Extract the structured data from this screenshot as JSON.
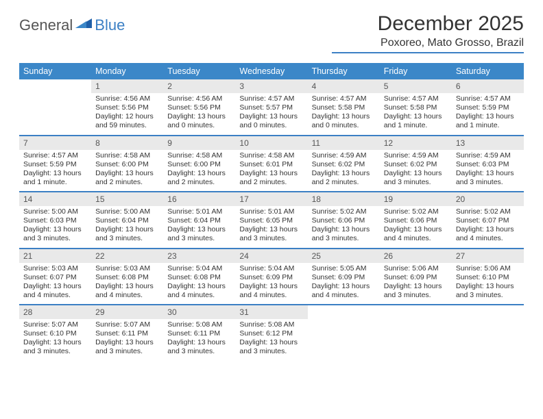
{
  "brand": {
    "part1": "General",
    "part2": "Blue"
  },
  "title": "December 2025",
  "subtitle": "Poxoreo, Mato Grosso, Brazil",
  "colors": {
    "accent": "#3b87c8",
    "accent_line": "#3b7fc4",
    "daynum_bg": "#e9e9e9",
    "text": "#333333",
    "bg": "#ffffff"
  },
  "dayHeaders": [
    "Sunday",
    "Monday",
    "Tuesday",
    "Wednesday",
    "Thursday",
    "Friday",
    "Saturday"
  ],
  "weeks": [
    [
      {
        "n": "",
        "sr": "",
        "ss": "",
        "dl": ""
      },
      {
        "n": "1",
        "sr": "Sunrise: 4:56 AM",
        "ss": "Sunset: 5:56 PM",
        "dl": "Daylight: 12 hours and 59 minutes."
      },
      {
        "n": "2",
        "sr": "Sunrise: 4:56 AM",
        "ss": "Sunset: 5:56 PM",
        "dl": "Daylight: 13 hours and 0 minutes."
      },
      {
        "n": "3",
        "sr": "Sunrise: 4:57 AM",
        "ss": "Sunset: 5:57 PM",
        "dl": "Daylight: 13 hours and 0 minutes."
      },
      {
        "n": "4",
        "sr": "Sunrise: 4:57 AM",
        "ss": "Sunset: 5:58 PM",
        "dl": "Daylight: 13 hours and 0 minutes."
      },
      {
        "n": "5",
        "sr": "Sunrise: 4:57 AM",
        "ss": "Sunset: 5:58 PM",
        "dl": "Daylight: 13 hours and 1 minute."
      },
      {
        "n": "6",
        "sr": "Sunrise: 4:57 AM",
        "ss": "Sunset: 5:59 PM",
        "dl": "Daylight: 13 hours and 1 minute."
      }
    ],
    [
      {
        "n": "7",
        "sr": "Sunrise: 4:57 AM",
        "ss": "Sunset: 5:59 PM",
        "dl": "Daylight: 13 hours and 1 minute."
      },
      {
        "n": "8",
        "sr": "Sunrise: 4:58 AM",
        "ss": "Sunset: 6:00 PM",
        "dl": "Daylight: 13 hours and 2 minutes."
      },
      {
        "n": "9",
        "sr": "Sunrise: 4:58 AM",
        "ss": "Sunset: 6:00 PM",
        "dl": "Daylight: 13 hours and 2 minutes."
      },
      {
        "n": "10",
        "sr": "Sunrise: 4:58 AM",
        "ss": "Sunset: 6:01 PM",
        "dl": "Daylight: 13 hours and 2 minutes."
      },
      {
        "n": "11",
        "sr": "Sunrise: 4:59 AM",
        "ss": "Sunset: 6:02 PM",
        "dl": "Daylight: 13 hours and 2 minutes."
      },
      {
        "n": "12",
        "sr": "Sunrise: 4:59 AM",
        "ss": "Sunset: 6:02 PM",
        "dl": "Daylight: 13 hours and 3 minutes."
      },
      {
        "n": "13",
        "sr": "Sunrise: 4:59 AM",
        "ss": "Sunset: 6:03 PM",
        "dl": "Daylight: 13 hours and 3 minutes."
      }
    ],
    [
      {
        "n": "14",
        "sr": "Sunrise: 5:00 AM",
        "ss": "Sunset: 6:03 PM",
        "dl": "Daylight: 13 hours and 3 minutes."
      },
      {
        "n": "15",
        "sr": "Sunrise: 5:00 AM",
        "ss": "Sunset: 6:04 PM",
        "dl": "Daylight: 13 hours and 3 minutes."
      },
      {
        "n": "16",
        "sr": "Sunrise: 5:01 AM",
        "ss": "Sunset: 6:04 PM",
        "dl": "Daylight: 13 hours and 3 minutes."
      },
      {
        "n": "17",
        "sr": "Sunrise: 5:01 AM",
        "ss": "Sunset: 6:05 PM",
        "dl": "Daylight: 13 hours and 3 minutes."
      },
      {
        "n": "18",
        "sr": "Sunrise: 5:02 AM",
        "ss": "Sunset: 6:06 PM",
        "dl": "Daylight: 13 hours and 3 minutes."
      },
      {
        "n": "19",
        "sr": "Sunrise: 5:02 AM",
        "ss": "Sunset: 6:06 PM",
        "dl": "Daylight: 13 hours and 4 minutes."
      },
      {
        "n": "20",
        "sr": "Sunrise: 5:02 AM",
        "ss": "Sunset: 6:07 PM",
        "dl": "Daylight: 13 hours and 4 minutes."
      }
    ],
    [
      {
        "n": "21",
        "sr": "Sunrise: 5:03 AM",
        "ss": "Sunset: 6:07 PM",
        "dl": "Daylight: 13 hours and 4 minutes."
      },
      {
        "n": "22",
        "sr": "Sunrise: 5:03 AM",
        "ss": "Sunset: 6:08 PM",
        "dl": "Daylight: 13 hours and 4 minutes."
      },
      {
        "n": "23",
        "sr": "Sunrise: 5:04 AM",
        "ss": "Sunset: 6:08 PM",
        "dl": "Daylight: 13 hours and 4 minutes."
      },
      {
        "n": "24",
        "sr": "Sunrise: 5:04 AM",
        "ss": "Sunset: 6:09 PM",
        "dl": "Daylight: 13 hours and 4 minutes."
      },
      {
        "n": "25",
        "sr": "Sunrise: 5:05 AM",
        "ss": "Sunset: 6:09 PM",
        "dl": "Daylight: 13 hours and 4 minutes."
      },
      {
        "n": "26",
        "sr": "Sunrise: 5:06 AM",
        "ss": "Sunset: 6:09 PM",
        "dl": "Daylight: 13 hours and 3 minutes."
      },
      {
        "n": "27",
        "sr": "Sunrise: 5:06 AM",
        "ss": "Sunset: 6:10 PM",
        "dl": "Daylight: 13 hours and 3 minutes."
      }
    ],
    [
      {
        "n": "28",
        "sr": "Sunrise: 5:07 AM",
        "ss": "Sunset: 6:10 PM",
        "dl": "Daylight: 13 hours and 3 minutes."
      },
      {
        "n": "29",
        "sr": "Sunrise: 5:07 AM",
        "ss": "Sunset: 6:11 PM",
        "dl": "Daylight: 13 hours and 3 minutes."
      },
      {
        "n": "30",
        "sr": "Sunrise: 5:08 AM",
        "ss": "Sunset: 6:11 PM",
        "dl": "Daylight: 13 hours and 3 minutes."
      },
      {
        "n": "31",
        "sr": "Sunrise: 5:08 AM",
        "ss": "Sunset: 6:12 PM",
        "dl": "Daylight: 13 hours and 3 minutes."
      },
      {
        "n": "",
        "sr": "",
        "ss": "",
        "dl": ""
      },
      {
        "n": "",
        "sr": "",
        "ss": "",
        "dl": ""
      },
      {
        "n": "",
        "sr": "",
        "ss": "",
        "dl": ""
      }
    ]
  ]
}
